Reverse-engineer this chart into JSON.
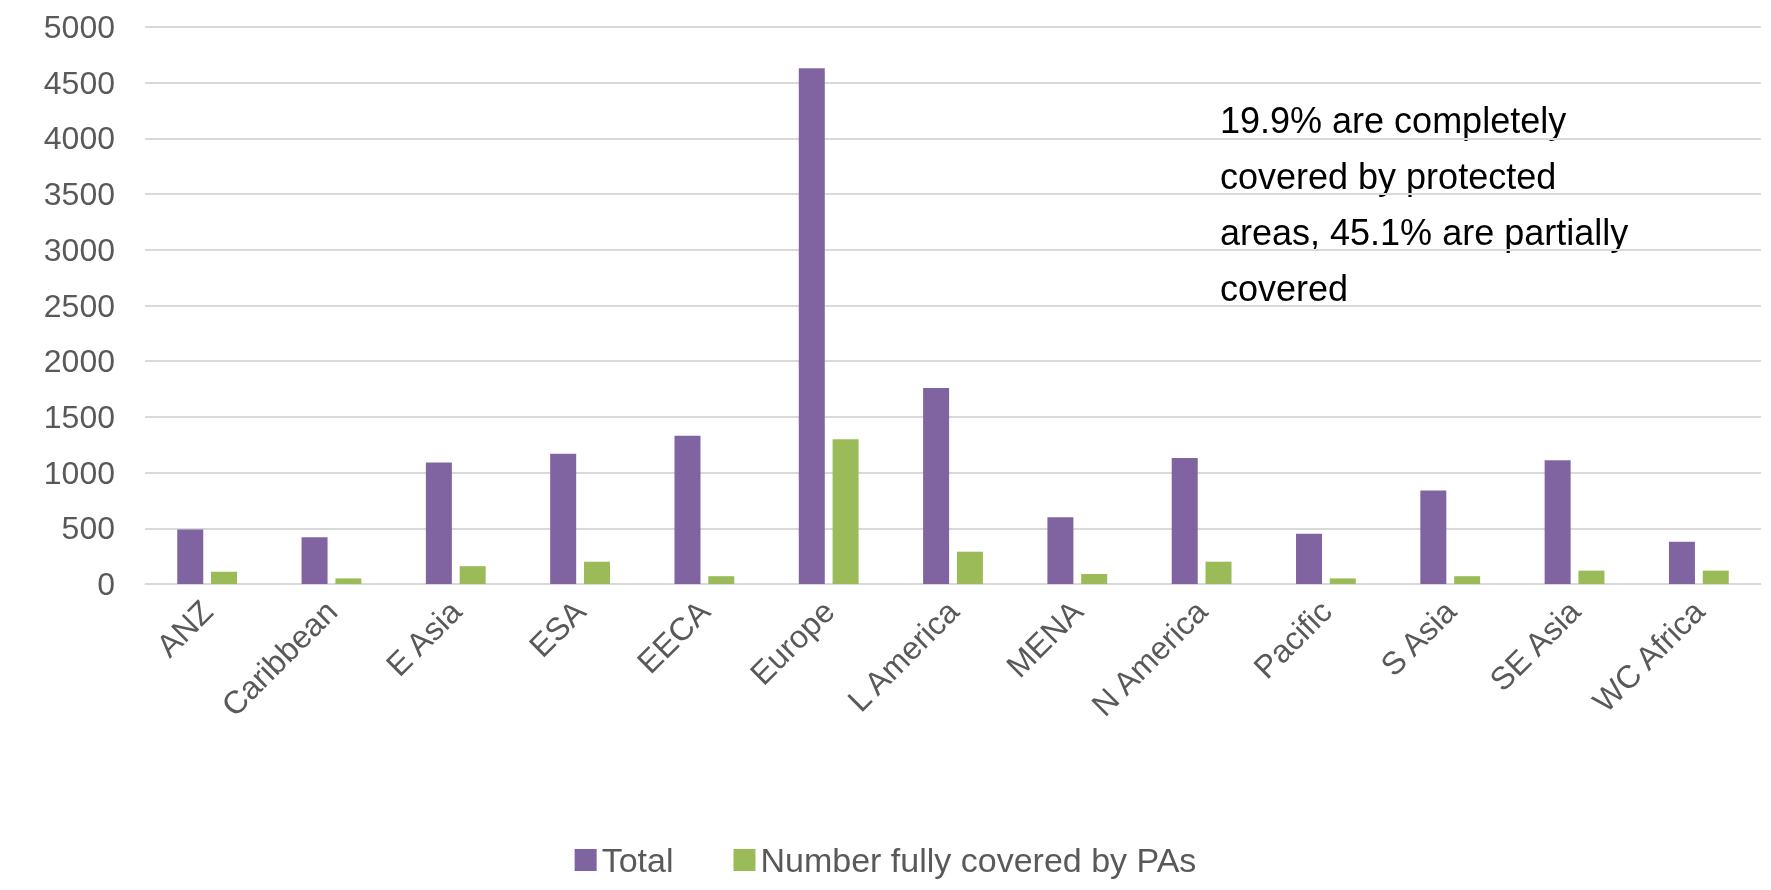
{
  "chart_data": {
    "type": "bar",
    "categories": [
      "ANZ",
      "Caribbean",
      "E Asia",
      "ESA",
      "EECA",
      "Europe",
      "L America",
      "MENA",
      "N America",
      "Pacific",
      "S Asia",
      "SE Asia",
      "WC Africa"
    ],
    "series": [
      {
        "name": "Total",
        "color": "#8064a2",
        "values": [
          490,
          420,
          1090,
          1170,
          1330,
          4630,
          1760,
          600,
          1130,
          450,
          840,
          1110,
          380
        ]
      },
      {
        "name": "Number fully covered by PAs",
        "color": "#9bbb59",
        "values": [
          110,
          50,
          160,
          200,
          70,
          1300,
          290,
          90,
          200,
          50,
          70,
          120,
          120
        ]
      }
    ],
    "ylim": [
      0,
      5000
    ],
    "yticks": [
      0,
      500,
      1000,
      1500,
      2000,
      2500,
      3000,
      3500,
      4000,
      4500,
      5000
    ],
    "grid": "y",
    "legend": "bottom",
    "annotations": [
      "19.9% are completely covered by protected areas, 45.1% are partially covered"
    ]
  }
}
